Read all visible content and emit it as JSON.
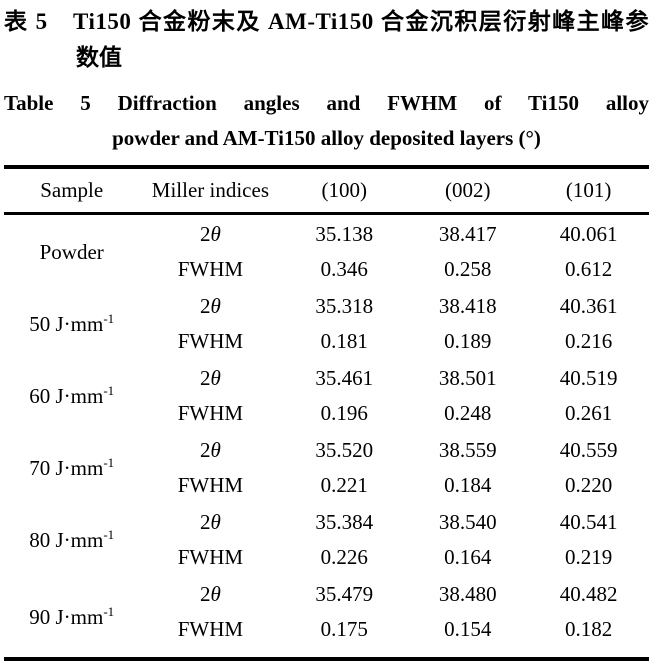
{
  "caption_zh": {
    "line1": "表 5　Ti150 合金粉末及 AM-Ti150 合金沉积层衍射峰主峰参",
    "line2": "数值"
  },
  "caption_en": {
    "line1": "Table 5   Diffraction angles and FWHM of Ti150 alloy",
    "line2": "powder and AM-Ti150 alloy deposited layers (°)"
  },
  "table": {
    "headers": [
      "Sample",
      "Miller indices",
      "(100)",
      "(002)",
      "(101)"
    ],
    "groups": [
      {
        "sample": "Powder",
        "sample_sup": "",
        "rows": [
          {
            "label_text": "2",
            "label_italic": "θ",
            "values": [
              "35.138",
              "38.417",
              "40.061"
            ]
          },
          {
            "label_text": "FWHM",
            "label_italic": "",
            "values": [
              "0.346",
              "0.258",
              "0.612"
            ]
          }
        ]
      },
      {
        "sample": "50 J·mm",
        "sample_sup": "-1",
        "rows": [
          {
            "label_text": "2",
            "label_italic": "θ",
            "values": [
              "35.318",
              "38.418",
              "40.361"
            ]
          },
          {
            "label_text": "FWHM",
            "label_italic": "",
            "values": [
              "0.181",
              "0.189",
              "0.216"
            ]
          }
        ]
      },
      {
        "sample": "60 J·mm",
        "sample_sup": "-1",
        "rows": [
          {
            "label_text": "2",
            "label_italic": "θ",
            "values": [
              "35.461",
              "38.501",
              "40.519"
            ]
          },
          {
            "label_text": "FWHM",
            "label_italic": "",
            "values": [
              "0.196",
              "0.248",
              "0.261"
            ]
          }
        ]
      },
      {
        "sample": "70 J·mm",
        "sample_sup": "-1",
        "rows": [
          {
            "label_text": "2",
            "label_italic": "θ",
            "values": [
              "35.520",
              "38.559",
              "40.559"
            ]
          },
          {
            "label_text": "FWHM",
            "label_italic": "",
            "values": [
              "0.221",
              "0.184",
              "0.220"
            ]
          }
        ]
      },
      {
        "sample": "80 J·mm",
        "sample_sup": "-1",
        "rows": [
          {
            "label_text": "2",
            "label_italic": "θ",
            "values": [
              "35.384",
              "38.540",
              "40.541"
            ]
          },
          {
            "label_text": "FWHM",
            "label_italic": "",
            "values": [
              "0.226",
              "0.164",
              "0.219"
            ]
          }
        ]
      },
      {
        "sample": "90 J·mm",
        "sample_sup": "-1",
        "rows": [
          {
            "label_text": "2",
            "label_italic": "θ",
            "values": [
              "35.479",
              "38.480",
              "40.482"
            ]
          },
          {
            "label_text": "FWHM",
            "label_italic": "",
            "values": [
              "0.175",
              "0.154",
              "0.182"
            ]
          }
        ]
      }
    ]
  },
  "chart_data": {
    "type": "table",
    "title": "Diffraction angles and FWHM of Ti150 alloy powder and AM-Ti150 alloy deposited layers (°)",
    "title_zh": "表 5 Ti150 合金粉末及 AM-Ti150 合金沉积层衍射峰主峰参数值",
    "columns": [
      "Sample",
      "Miller indices",
      "(100)",
      "(002)",
      "(101)"
    ],
    "rows": [
      [
        "Powder",
        "2θ",
        35.138,
        38.417,
        40.061
      ],
      [
        "Powder",
        "FWHM",
        0.346,
        0.258,
        0.612
      ],
      [
        "50 J·mm⁻¹",
        "2θ",
        35.318,
        38.418,
        40.361
      ],
      [
        "50 J·mm⁻¹",
        "FWHM",
        0.181,
        0.189,
        0.216
      ],
      [
        "60 J·mm⁻¹",
        "2θ",
        35.461,
        38.501,
        40.519
      ],
      [
        "60 J·mm⁻¹",
        "FWHM",
        0.196,
        0.248,
        0.261
      ],
      [
        "70 J·mm⁻¹",
        "2θ",
        35.52,
        38.559,
        40.559
      ],
      [
        "70 J·mm⁻¹",
        "FWHM",
        0.221,
        0.184,
        0.22
      ],
      [
        "80 J·mm⁻¹",
        "2θ",
        35.384,
        38.54,
        40.541
      ],
      [
        "80 J·mm⁻¹",
        "FWHM",
        0.226,
        0.164,
        0.219
      ],
      [
        "90 J·mm⁻¹",
        "2θ",
        35.479,
        38.48,
        40.482
      ],
      [
        "90 J·mm⁻¹",
        "FWHM",
        0.175,
        0.154,
        0.182
      ]
    ]
  }
}
